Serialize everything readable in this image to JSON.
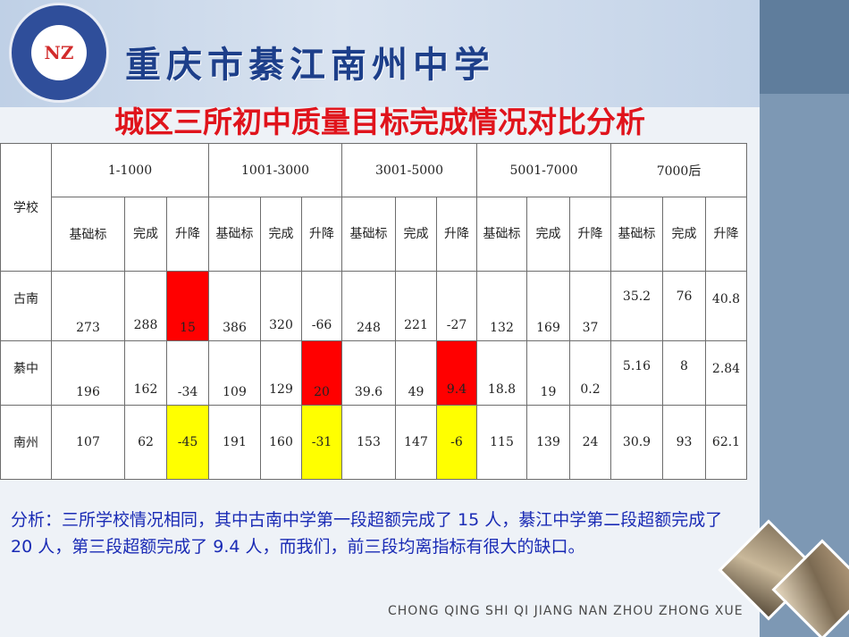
{
  "header": {
    "school_name": "重庆市綦江南州中学",
    "logo_text": "NZ",
    "footer": "CHONG QING SHI QI JIANG NAN ZHOU ZHONG XUE"
  },
  "title": "城区三所初中质量目标完成情况对比分析",
  "table": {
    "school_header": "学校",
    "bands": [
      "1-1000",
      "1001-3000",
      "3001-5000",
      "5001-7000",
      "7000后"
    ],
    "sub_headers": {
      "b1": [
        "基础标",
        "完成",
        "升降"
      ],
      "b2": [
        "基础标",
        "完成",
        "升降"
      ],
      "b3": [
        "基础标",
        "完成",
        "升降"
      ],
      "b4": [
        "基础标",
        "完成",
        "升降"
      ],
      "b5": [
        "基础标",
        "完成",
        "升降"
      ]
    },
    "rows": [
      {
        "school": "古南",
        "cells": [
          "273",
          "288",
          "15",
          "386",
          "320",
          "-66",
          "248",
          "221",
          "-27",
          "132",
          "169",
          "37",
          "35.2",
          "76",
          "40.8"
        ]
      },
      {
        "school": "綦中",
        "cells": [
          "196",
          "162",
          "-34",
          "109",
          "129",
          "20",
          "39.6",
          "49",
          "9.4",
          "18.8",
          "19",
          "0.2",
          "5.16",
          "8",
          "2.84"
        ]
      },
      {
        "school": "南州",
        "cells": [
          "107",
          "62",
          "-45",
          "191",
          "160",
          "-31",
          "153",
          "147",
          "-6",
          "115",
          "139",
          "24",
          "30.9",
          "93",
          "62.1"
        ]
      }
    ]
  },
  "analysis": "分析：三所学校情况相同，其中古南中学第一段超额完成了 15 人，綦江中学第二段超额完成了 20 人，第三段超额完成了 9.4 人，而我们，前三段均离指标有很大的缺口。",
  "colors": {
    "highlight_red": "#ff0000",
    "highlight_yellow": "#ffff00",
    "title_red": "#e0141c",
    "analysis_blue": "#1a2bb5"
  }
}
